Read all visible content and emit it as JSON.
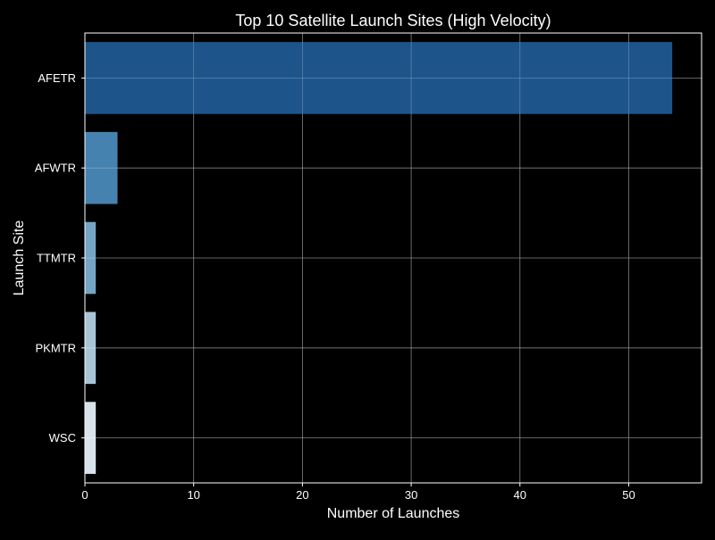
{
  "chart_data": {
    "type": "bar",
    "orientation": "horizontal",
    "title": "Top 10 Satellite Launch Sites (High Velocity)",
    "xlabel": "Number of Launches",
    "ylabel": "Launch Site",
    "categories": [
      "AFETR",
      "AFWTR",
      "TTMTR",
      "PKMTR",
      "WSC"
    ],
    "values": [
      54,
      3,
      1,
      1,
      1
    ],
    "bar_colors": [
      "#1f5a92",
      "#4a89b8",
      "#7aaed0",
      "#b1d0e4",
      "#e4eef7"
    ],
    "xlim": [
      0,
      56.7
    ],
    "xticks": [
      0,
      10,
      20,
      30,
      40,
      50
    ],
    "grid": true,
    "background": "#000000",
    "text_color": "#ffffff",
    "grid_color": "#555555"
  }
}
